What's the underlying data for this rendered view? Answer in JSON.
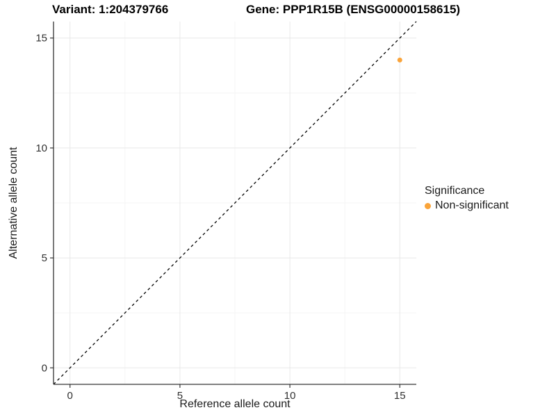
{
  "titles": {
    "variant": "Variant: 1:204379766",
    "gene": "Gene: PPP1R15B (ENSG00000158615)"
  },
  "chart_data": {
    "type": "scatter",
    "title": "Variant: 1:204379766 — Gene: PPP1R15B (ENSG00000158615)",
    "xlabel": "Reference allele count",
    "ylabel": "Alternative allele count",
    "xlim": [
      -0.75,
      15.75
    ],
    "ylim": [
      -0.75,
      15.75
    ],
    "x_ticks": [
      0,
      5,
      10,
      15
    ],
    "y_ticks": [
      0,
      5,
      10,
      15
    ],
    "x_minor_ticks": [
      2.5,
      7.5,
      12.5
    ],
    "y_minor_ticks": [
      2.5,
      7.5,
      12.5
    ],
    "grid": "major+minor",
    "reference_line": {
      "slope": 1,
      "intercept": 0,
      "style": "dashed",
      "color": "#000000"
    },
    "series": [
      {
        "name": "Non-significant",
        "color": "#FAA43A",
        "points": [
          [
            15,
            14
          ]
        ],
        "point_radius": 3.5
      }
    ],
    "legend": {
      "title": "Significance",
      "position": "right",
      "items": [
        {
          "label": "Non-significant",
          "color": "#FAA43A"
        }
      ]
    }
  },
  "colors": {
    "background": "#FFFFFF",
    "axis_line": "#333333",
    "tick_label": "#303030",
    "grid_major": "#E8E8E8",
    "grid_minor": "#F4F4F4"
  }
}
